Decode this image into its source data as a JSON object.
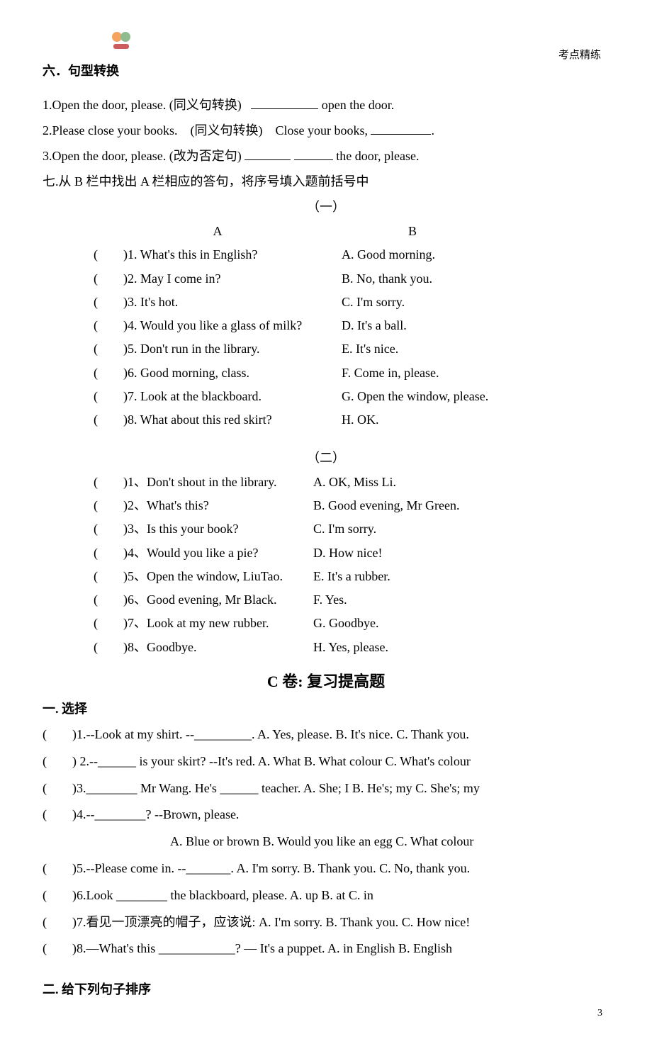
{
  "header_right": "考点精练",
  "page_number": "3",
  "section6": {
    "title": "六．句型转换",
    "q1_pre": "1.Open the door, please. (同义句转换)",
    "q1_post": " open the door.",
    "q2_pre": "2.Please close your books.　(同义句转换)　Close your books, ",
    "q2_post": ".",
    "q3_pre": "3.Open the door, please. (改为否定句)  ",
    "q3_mid": "  ",
    "q3_post": "  the door, please."
  },
  "section7": {
    "title": "七.从 B 栏中找出 A 栏相应的答句，将序号填入题前括号中",
    "part1_label": "（一）",
    "colA": "A",
    "colB": "B",
    "rows1": [
      {
        "a": "1. What's this in English?",
        "b": "A. Good morning."
      },
      {
        "a": "2. May I come in?",
        "b": "B. No, thank you."
      },
      {
        "a": "3. It's hot.",
        "b": "   C. I'm sorry."
      },
      {
        "a": "4. Would you like a glass of milk?",
        "b": "D. It's a ball."
      },
      {
        "a": "5. Don't run in the library.",
        "b": "E. It's nice."
      },
      {
        "a": "6. Good morning, class.",
        "b": "F. Come in, please."
      },
      {
        "a": "7. Look at the blackboard.",
        "b": "G. Open the window, please."
      },
      {
        "a": "8. What about this red skirt?",
        "b": "H. OK."
      }
    ],
    "part2_label": "（二）",
    "rows2": [
      {
        "a": "1、Don't shout in the library.",
        "b": "A. OK, Miss Li."
      },
      {
        "a": "2、What's this?",
        "b": "B. Good evening, Mr Green."
      },
      {
        "a": "3、Is this your book?",
        "b": "C. I'm sorry."
      },
      {
        "a": "4、Would you like a pie?",
        "b": "D. How nice!"
      },
      {
        "a": "5、Open the window, LiuTao.",
        "b": "E. It's a rubber."
      },
      {
        "a": "6、Good evening, Mr Black.",
        "b": "F. Yes."
      },
      {
        "a": "7、Look at my new rubber.",
        "b": "G. Goodbye."
      },
      {
        "a": "8、Goodbye.",
        "b": "H. Yes, please."
      }
    ]
  },
  "sectionC": {
    "title": "C 卷: 复习提高题",
    "sec1_title": "一. 选择",
    "q1": ")1.--Look at my shirt.   --_________.    A. Yes, please.    B. It's nice.              C. Thank you.",
    "q2": ") 2.--______ is your skirt?   --It's red.   A. What          B. What colour        C. What's colour",
    "q3": ")3.________ Mr Wang. He's ______ teacher.     A. She; I      B. He's; my       C. She's; my",
    "q4": ")4.--________?      --Brown, please.",
    "q4_opts": "A. Blue or brown      B. Would you like an egg      C. What colour",
    "q5": ")5.--Please come in.    --_______.             A. I'm sorry.       B. Thank you.    C. No, thank you.",
    "q6": ")6.Look ________ the blackboard, please.     A. up               B. at               C. in",
    "q7": ")7.看见一顶漂亮的帽子，应该说:    A. I'm sorry.         B. Thank you.       C. How nice!",
    "q8": ")8.—What's this ____________?         — It's a puppet.   A. in English          B. English",
    "sec2_title": "二. 给下列句子排序"
  }
}
